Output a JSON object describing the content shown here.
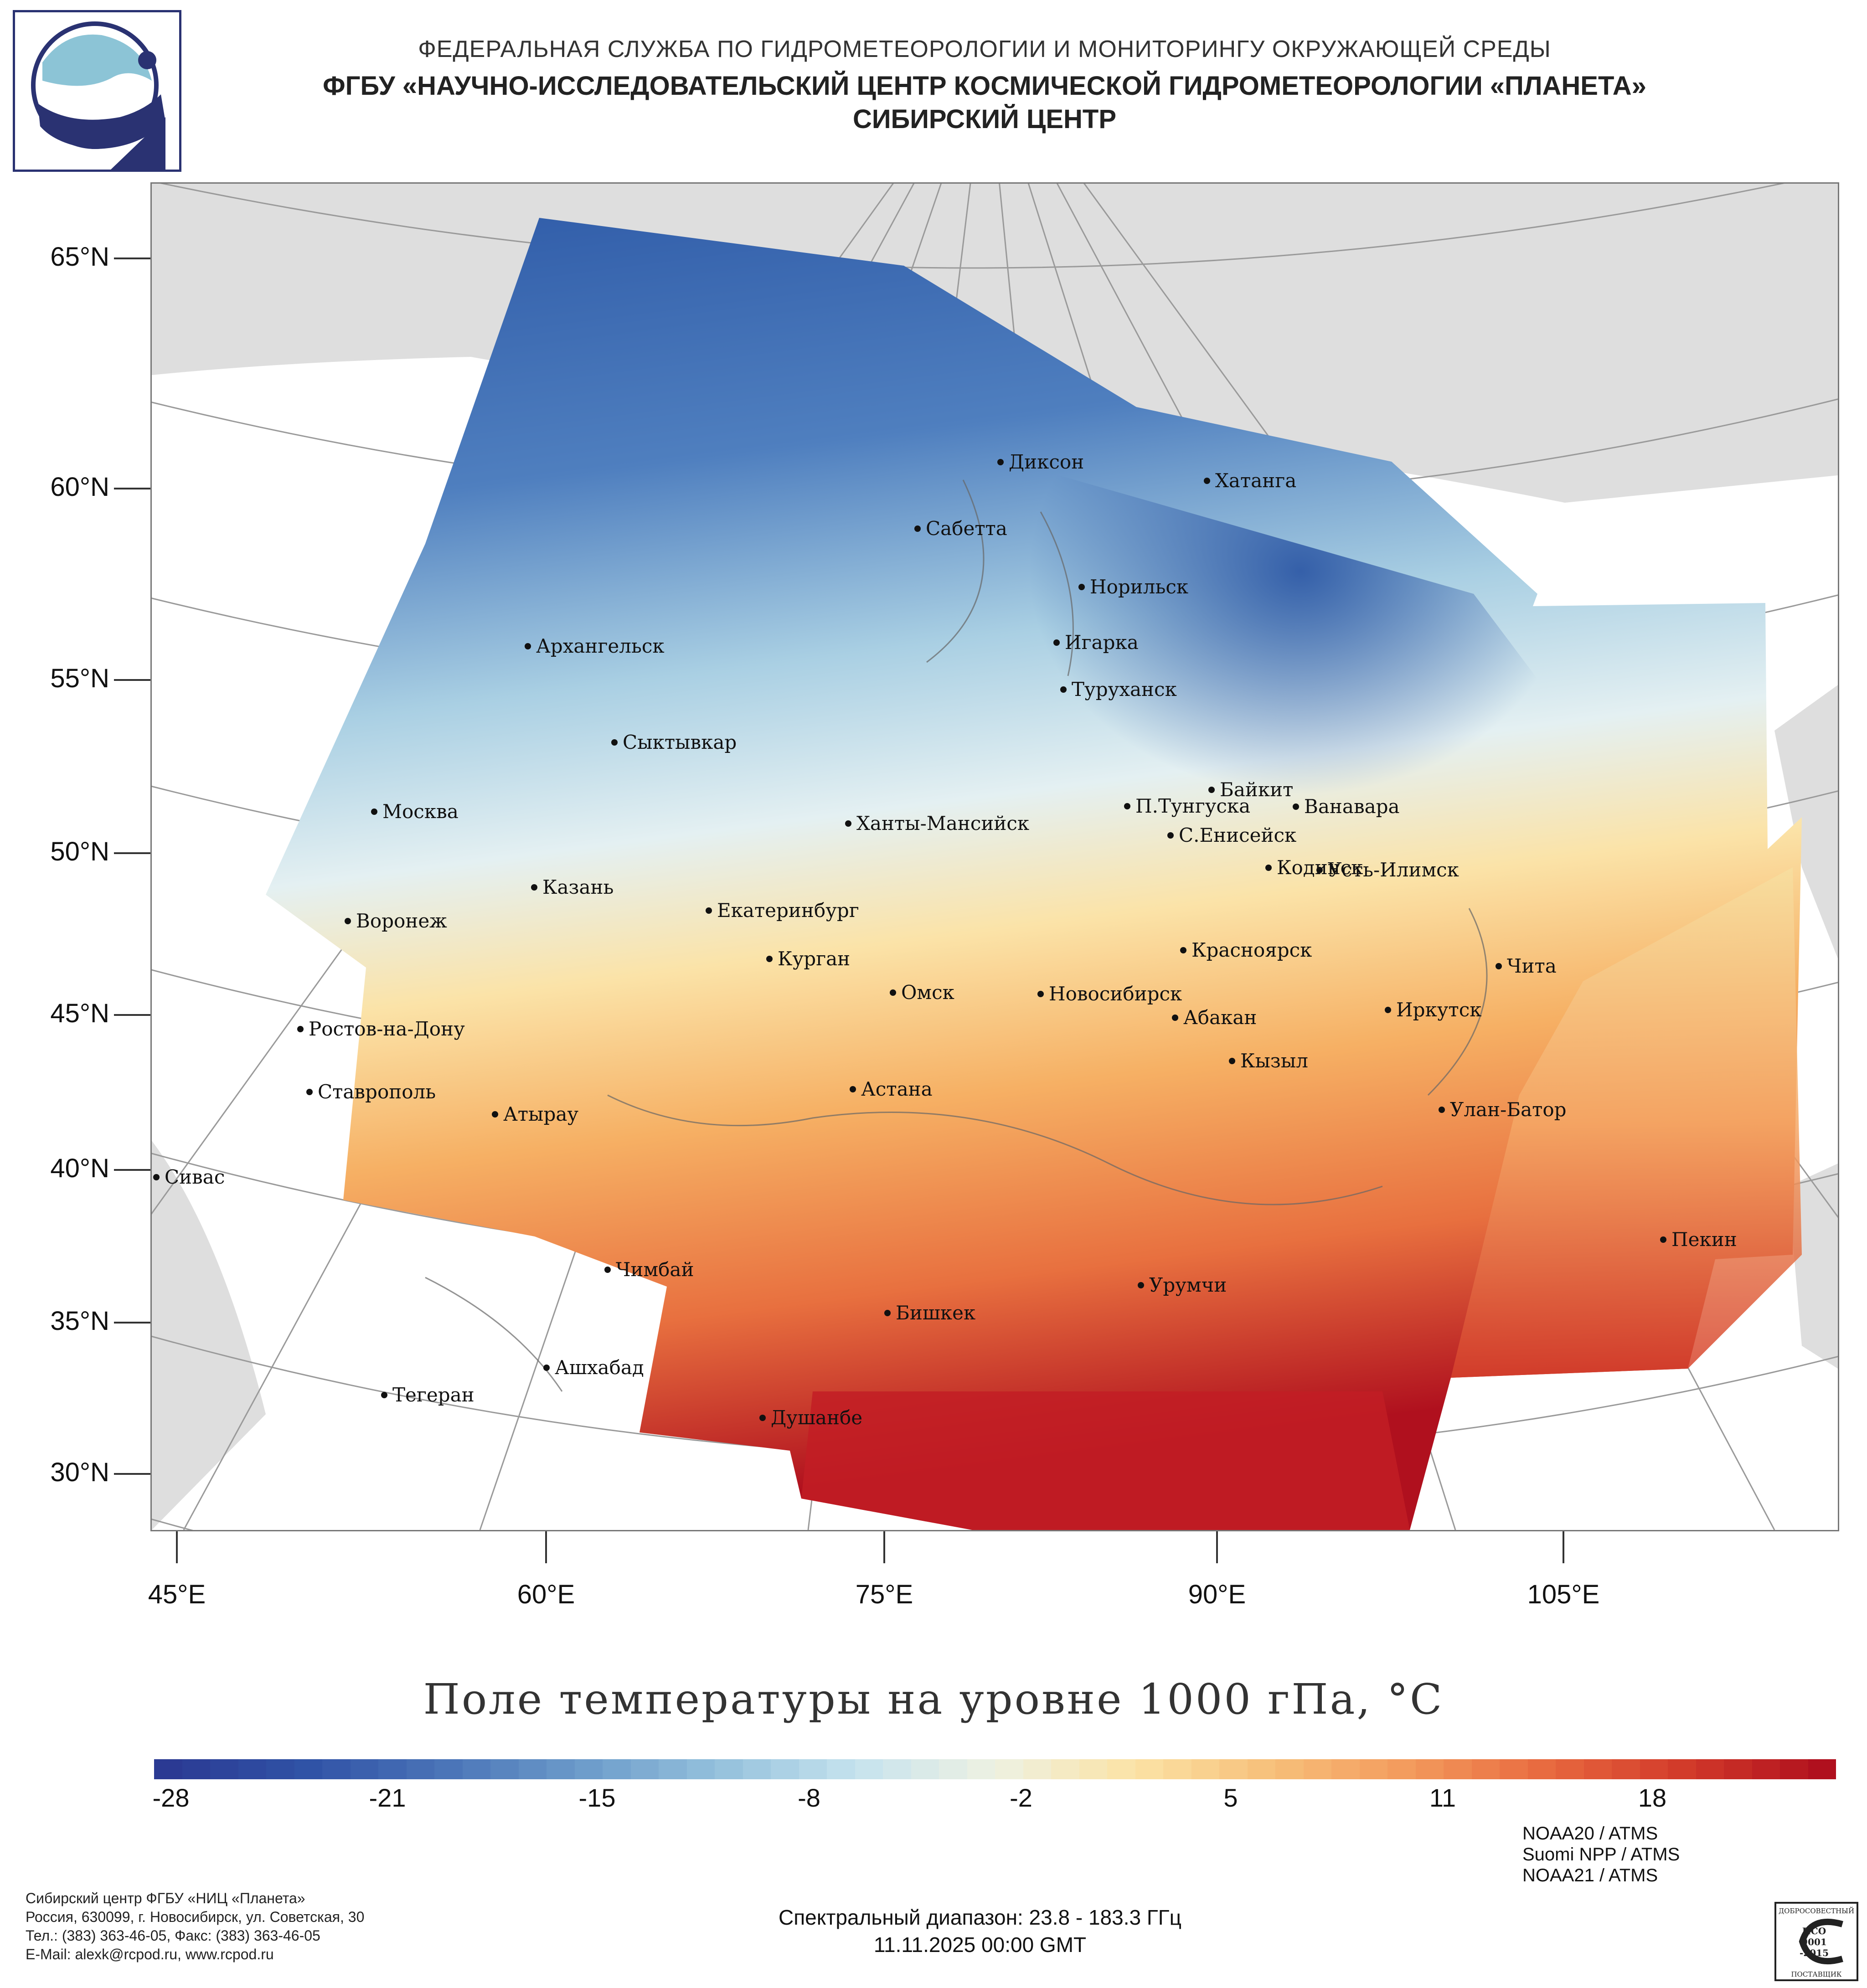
{
  "header": {
    "line1": "ФЕДЕРАЛЬНАЯ СЛУЖБА ПО ГИДРОМЕТЕОРОЛОГИИ И МОНИТОРИНГУ ОКРУЖАЮЩЕЙ СРЕДЫ",
    "line2": "ФГБУ «НАУЧНО-ИССЛЕДОВАТЕЛЬСКИЙ ЦЕНТР КОСМИЧЕСКОЙ ГИДРОМЕТЕОРОЛОГИИ «ПЛАНЕТА»",
    "line3": "СИБИРСКИЙ ЦЕНТР"
  },
  "map": {
    "lat_labels": [
      "65°N",
      "60°N",
      "55°N",
      "50°N",
      "45°N",
      "40°N",
      "35°N",
      "30°N"
    ],
    "lon_labels": [
      "45°E",
      "60°E",
      "75°E",
      "90°E",
      "105°E"
    ],
    "cities": [
      "Диксон",
      "Хатанга",
      "Сабетта",
      "Норильск",
      "Архангельск",
      "Игарка",
      "Туруханск",
      "Сыктывкар",
      "Байкит",
      "Москва",
      "П.Тунгуска",
      "Ванавара",
      "Ханты-Мансийск",
      "С.Енисейск",
      "Кодинск",
      "Усть-Илимск",
      "Казань",
      "Екатеринбург",
      "Воронеж",
      "Красноярск",
      "Курган",
      "Чита",
      "Омск",
      "Новосибирск",
      "Иркутск",
      "Абакан",
      "Ростов-на-Дону",
      "Кызыл",
      "Ставрополь",
      "Астана",
      "Улан-Батор",
      "Атырау",
      "Сивас",
      "Пекин",
      "Чимбай",
      "Урумчи",
      "Бишкек",
      "Ашхабад",
      "Тегеран",
      "Душанбе"
    ]
  },
  "legend": {
    "title": "Поле температуры на уровне 1000 гПа, °C",
    "ticks": [
      "-28",
      "-21",
      "-15",
      "-8",
      "-2",
      "5",
      "11",
      "18"
    ]
  },
  "footer": {
    "org_lines": [
      "Сибирский центр ФГБУ «НИЦ «Планета»",
      "Россия, 630099, г. Новосибирск, ул. Советская, 30",
      "Тел.: (383) 363-46-05, Факс: (383) 363-46-05",
      "E-Mail: alexk@rcpod.ru, www.rcpod.ru"
    ],
    "spectral": "Спектральный диапазон: 23.8 - 183.3 ГГц",
    "datetime": "11.11.2025 00:00 GMT",
    "instruments": [
      "NOAA20 / ATMS",
      "Suomi NPP / ATMS",
      "NOAA21 / ATMS"
    ],
    "iso": {
      "top": "ДОБРОСОВЕСТНЫЙ",
      "mid1": "ИСО",
      "mid2": "9001",
      "mid3": "-2015",
      "bottom": "ПОСТАВЩИК"
    }
  },
  "colors": {
    "cold": "#2c4ea0",
    "neutral": "#f1f3e4",
    "warm": "#f6b064",
    "hot": "#b0101e",
    "land": "#dedede"
  }
}
